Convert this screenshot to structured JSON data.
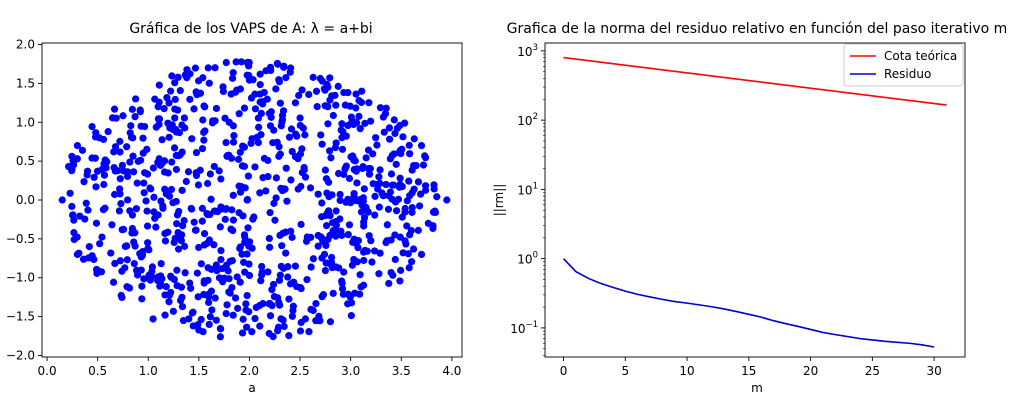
{
  "chart_data": [
    {
      "type": "scatter",
      "title": "Gráfica de los VAPS de A: λ = a+bi",
      "xlabel": "a",
      "ylabel": "",
      "xlim": [
        -0.05,
        4.1
      ],
      "ylim": [
        -2.02,
        2.02
      ],
      "xticks": [
        0.0,
        0.5,
        1.0,
        1.5,
        2.0,
        2.5,
        3.0,
        3.5,
        4.0
      ],
      "xtick_labels": [
        "0.0",
        "0.5",
        "1.0",
        "1.5",
        "2.0",
        "2.5",
        "3.0",
        "3.5",
        "4.0"
      ],
      "yticks": [
        -2.0,
        -1.5,
        -1.0,
        -0.5,
        0.0,
        0.5,
        1.0,
        1.5,
        2.0
      ],
      "ytick_labels": [
        "−2.0",
        "−1.5",
        "−1.0",
        "−0.5",
        "0.0",
        "0.5",
        "1.0",
        "1.5",
        "2.0"
      ],
      "grid": false,
      "color": "#0000ff",
      "generator": {
        "count": 900,
        "center": [
          2.0,
          0.0
        ],
        "radius_a": 1.88,
        "radius_b": 1.82,
        "extreme_points": [
          {
            "a": 3.95,
            "b": 0.0
          },
          {
            "a": 0.15,
            "b": 0.0
          },
          {
            "a": 0.3,
            "b": -0.7
          },
          {
            "a": 0.3,
            "b": 0.7
          },
          {
            "a": 3.7,
            "b": 0.7
          },
          {
            "a": 3.7,
            "b": -0.7
          }
        ]
      }
    },
    {
      "type": "line",
      "title": "Grafica de la norma del residuo relativo en función del paso iterativo m",
      "xlabel": "m",
      "ylabel": "||rm||",
      "yscale": "log",
      "xlim": [
        -1.5,
        32.5
      ],
      "ylim": [
        0.038,
        1300
      ],
      "xticks": [
        0,
        5,
        10,
        15,
        20,
        25,
        30
      ],
      "xtick_labels": [
        "0",
        "5",
        "10",
        "15",
        "20",
        "25",
        "30"
      ],
      "yticks": [
        0.1,
        1,
        10,
        100,
        1000
      ],
      "ytick_labels": [
        {
          "base": "10",
          "exp": "−1"
        },
        {
          "base": "10",
          "exp": "0"
        },
        {
          "base": "10",
          "exp": "1"
        },
        {
          "base": "10",
          "exp": "2"
        },
        {
          "base": "10",
          "exp": "3"
        }
      ],
      "grid": false,
      "legend_position": "top-right",
      "series": [
        {
          "name": "Cota teórica",
          "color": "#ff0000",
          "x": [
            0,
            31
          ],
          "y": [
            800,
            165
          ]
        },
        {
          "name": "Residuo",
          "color": "#0000cc",
          "x": [
            0,
            1,
            2,
            3,
            4,
            5,
            6,
            7,
            8,
            9,
            10,
            11,
            12,
            13,
            14,
            15,
            16,
            17,
            18,
            19,
            20,
            21,
            22,
            23,
            24,
            25,
            26,
            27,
            28,
            29,
            30
          ],
          "y": [
            1.0,
            0.65,
            0.52,
            0.44,
            0.385,
            0.34,
            0.305,
            0.28,
            0.258,
            0.24,
            0.228,
            0.215,
            0.202,
            0.188,
            0.172,
            0.157,
            0.143,
            0.127,
            0.115,
            0.105,
            0.095,
            0.086,
            0.08,
            0.075,
            0.07,
            0.067,
            0.064,
            0.062,
            0.06,
            0.057,
            0.053
          ]
        }
      ]
    }
  ]
}
